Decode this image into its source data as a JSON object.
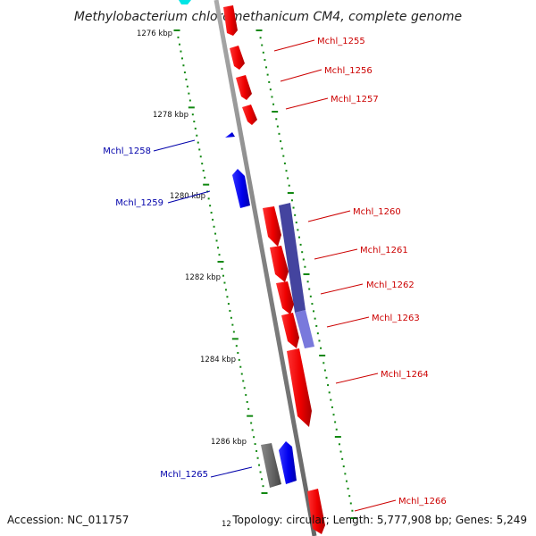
{
  "title": "Methylobacterium chloromethanicum CM4, complete genome",
  "footer": {
    "accession": "Accession: NC_011757",
    "topology": "Topology: circular; Length: 5,777,908 bp; Genes: 5,249",
    "partial_tick": "12"
  },
  "ticks": [
    "1276 kbp",
    "1278 kbp",
    "1280 kbp",
    "1282 kbp",
    "1284 kbp",
    "1286 kbp"
  ],
  "genes": [
    {
      "id": "Mchl_1255",
      "strand": "forward",
      "color": "#ff0000"
    },
    {
      "id": "Mchl_1256",
      "strand": "forward",
      "color": "#ff0000"
    },
    {
      "id": "Mchl_1257",
      "strand": "forward",
      "color": "#ff0000"
    },
    {
      "id": "Mchl_1258",
      "strand": "reverse",
      "color": "#0000ff"
    },
    {
      "id": "Mchl_1259",
      "strand": "reverse",
      "color": "#0000ff"
    },
    {
      "id": "Mchl_1260",
      "strand": "forward",
      "color": "#ff0000"
    },
    {
      "id": "Mchl_1261",
      "strand": "forward",
      "color": "#ff0000"
    },
    {
      "id": "Mchl_1262",
      "strand": "forward",
      "color": "#ff0000"
    },
    {
      "id": "Mchl_1263",
      "strand": "forward",
      "color": "#ff0000"
    },
    {
      "id": "Mchl_1264",
      "strand": "forward",
      "color": "#ff0000"
    },
    {
      "id": "Mchl_1265",
      "strand": "reverse",
      "color": "#0000ff"
    },
    {
      "id": "Mchl_1266",
      "strand": "forward",
      "color": "#ff0000"
    }
  ],
  "colors": {
    "forward_gene": "#ff0000",
    "reverse_gene": "#0000ff",
    "feature_overlay": "#3a3a9a",
    "gray_feature": "#555555",
    "cyan_feature": "#00ffff",
    "backbone": "#808080",
    "tick_marks": "#118811",
    "forward_label": "#cc0000",
    "reverse_label": "#0000aa"
  }
}
